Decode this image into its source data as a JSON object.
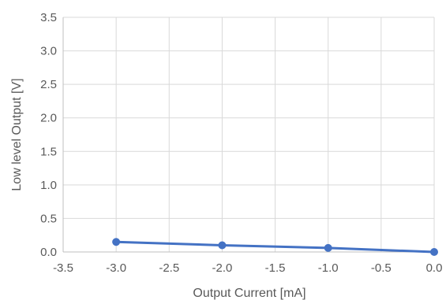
{
  "chart_data": {
    "type": "line",
    "xlabel": "Output Current [mA]",
    "ylabel": "Low level Output [V]",
    "xlim": [
      -3.5,
      0.0
    ],
    "ylim": [
      0.0,
      3.5
    ],
    "x_ticks": [
      "-3.5",
      "-3.0",
      "-2.5",
      "-2.0",
      "-1.5",
      "-1.0",
      "-0.5",
      "0.0"
    ],
    "y_ticks": [
      "0.0",
      "0.5",
      "1.0",
      "1.5",
      "2.0",
      "2.5",
      "3.0",
      "3.5"
    ],
    "grid": true,
    "series": [
      {
        "color": "#4472c4",
        "x": [
          -3.0,
          -2.0,
          -1.0,
          0.0
        ],
        "y": [
          0.15,
          0.1,
          0.06,
          0.0
        ]
      }
    ]
  }
}
